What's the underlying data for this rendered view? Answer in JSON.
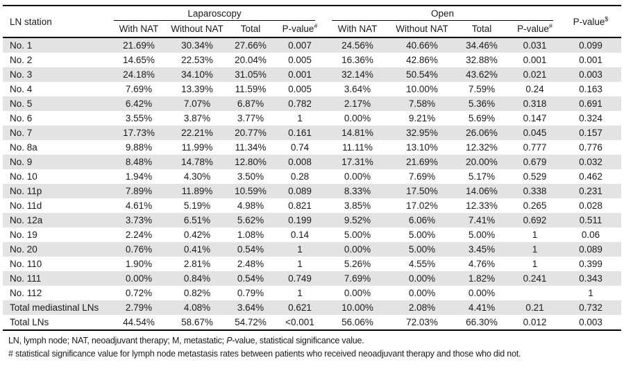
{
  "table": {
    "station_header": "LN station",
    "groups": {
      "laparoscopy": "Laparoscopy",
      "open": "Open"
    },
    "sub_headers": {
      "with_nat": "With NAT",
      "without_nat": "Without NAT",
      "total": "Total",
      "pvalue": "P-value"
    },
    "superscripts": {
      "hash": "#",
      "dollar": "$"
    },
    "rows": [
      {
        "station": "No. 1",
        "lap": [
          "21.69%",
          "30.34%",
          "27.66%",
          "0.007"
        ],
        "open": [
          "24.56%",
          "40.66%",
          "34.46%",
          "0.031"
        ],
        "p": "0.099"
      },
      {
        "station": "No. 2",
        "lap": [
          "14.65%",
          "22.53%",
          "20.04%",
          "0.005"
        ],
        "open": [
          "16.36%",
          "42.86%",
          "32.88%",
          "0.001"
        ],
        "p": "0.001"
      },
      {
        "station": "No. 3",
        "lap": [
          "24.18%",
          "34.10%",
          "31.05%",
          "0.001"
        ],
        "open": [
          "32.14%",
          "50.54%",
          "43.62%",
          "0.021"
        ],
        "p": "0.003"
      },
      {
        "station": "No. 4",
        "lap": [
          "7.69%",
          "13.39%",
          "11.59%",
          "0.005"
        ],
        "open": [
          "3.64%",
          "10.00%",
          "7.59%",
          "0.24"
        ],
        "p": "0.163"
      },
      {
        "station": "No. 5",
        "lap": [
          "6.42%",
          "7.07%",
          "6.87%",
          "0.782"
        ],
        "open": [
          "2.17%",
          "7.58%",
          "5.36%",
          "0.318"
        ],
        "p": "0.691"
      },
      {
        "station": "No. 6",
        "lap": [
          "3.55%",
          "3.87%",
          "3.77%",
          "1"
        ],
        "open": [
          "0.00%",
          "9.21%",
          "5.69%",
          "0.147"
        ],
        "p": "0.324"
      },
      {
        "station": "No. 7",
        "lap": [
          "17.73%",
          "22.21%",
          "20.77%",
          "0.161"
        ],
        "open": [
          "14.81%",
          "32.95%",
          "26.06%",
          "0.045"
        ],
        "p": "0.157"
      },
      {
        "station": "No. 8a",
        "lap": [
          "9.88%",
          "11.99%",
          "11.34%",
          "0.74"
        ],
        "open": [
          "11.11%",
          "13.10%",
          "12.32%",
          "0.777"
        ],
        "p": "0.776"
      },
      {
        "station": "No. 9",
        "lap": [
          "8.48%",
          "14.78%",
          "12.80%",
          "0.008"
        ],
        "open": [
          "17.31%",
          "21.69%",
          "20.00%",
          "0.679"
        ],
        "p": "0.032"
      },
      {
        "station": "No. 10",
        "lap": [
          "1.94%",
          "4.30%",
          "3.50%",
          "0.28"
        ],
        "open": [
          "0.00%",
          "7.69%",
          "5.17%",
          "0.529"
        ],
        "p": "0.462"
      },
      {
        "station": "No. 11p",
        "lap": [
          "7.89%",
          "11.89%",
          "10.59%",
          "0.089"
        ],
        "open": [
          "8.33%",
          "17.50%",
          "14.06%",
          "0.338"
        ],
        "p": "0.231"
      },
      {
        "station": "No. 11d",
        "lap": [
          "4.61%",
          "5.19%",
          "4.98%",
          "0.821"
        ],
        "open": [
          "3.85%",
          "17.02%",
          "12.33%",
          "0.265"
        ],
        "p": "0.028"
      },
      {
        "station": "No. 12a",
        "lap": [
          "3.73%",
          "6.51%",
          "5.62%",
          "0.199"
        ],
        "open": [
          "9.52%",
          "6.06%",
          "7.41%",
          "0.692"
        ],
        "p": "0.511"
      },
      {
        "station": "No. 19",
        "lap": [
          "2.24%",
          "0.42%",
          "1.08%",
          "0.14"
        ],
        "open": [
          "5.00%",
          "5.00%",
          "5.00%",
          "1"
        ],
        "p": "0.06"
      },
      {
        "station": "No. 20",
        "lap": [
          "0.76%",
          "0.41%",
          "0.54%",
          "1"
        ],
        "open": [
          "0.00%",
          "5.00%",
          "3.45%",
          "1"
        ],
        "p": "0.089"
      },
      {
        "station": "No. 110",
        "lap": [
          "1.90%",
          "2.81%",
          "2.48%",
          "1"
        ],
        "open": [
          "5.26%",
          "4.55%",
          "4.76%",
          "1"
        ],
        "p": "0.399"
      },
      {
        "station": "No. 111",
        "lap": [
          "0.00%",
          "0.84%",
          "0.54%",
          "0.749"
        ],
        "open": [
          "7.69%",
          "0.00%",
          "1.82%",
          "0.241"
        ],
        "p": "0.343"
      },
      {
        "station": "No. 112",
        "lap": [
          "0.72%",
          "0.82%",
          "0.79%",
          "1"
        ],
        "open": [
          "0.00%",
          "0.00%",
          "0.00%",
          ""
        ],
        "p": "1"
      },
      {
        "station": "Total mediastinal LNs",
        "lap": [
          "2.79%",
          "4.08%",
          "3.64%",
          "0.621"
        ],
        "open": [
          "10.00%",
          "2.08%",
          "4.41%",
          "0.21"
        ],
        "p": "0.732"
      },
      {
        "station": "Total LNs",
        "lap": [
          "44.54%",
          "58.67%",
          "54.72%",
          "<0.001"
        ],
        "open": [
          "56.06%",
          "72.03%",
          "66.30%",
          "0.012"
        ],
        "p": "0.003"
      }
    ]
  },
  "footnotes": {
    "abbrev_before": "LN, lymph node; NAT, neoadjuvant therapy; M, metastatic; ",
    "abbrev_italic": "P",
    "abbrev_after": "-value, statistical significance value.",
    "hash_note": "# statistical significance value for lymph node metastasis rates between patients who received neoadjuvant therapy and those who did not."
  },
  "colors": {
    "stripe": "#e3e3e3",
    "rule": "#000000",
    "text": "#1a1a1a"
  }
}
